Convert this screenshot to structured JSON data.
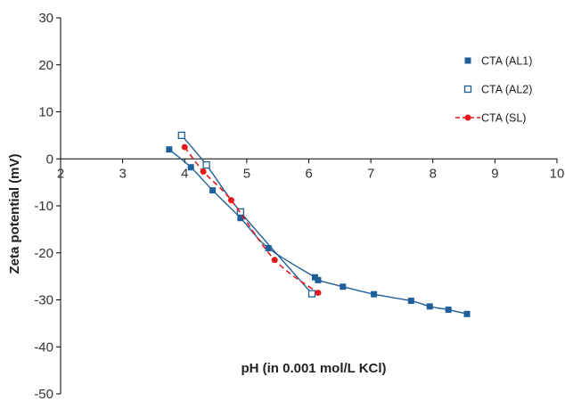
{
  "chart_data": {
    "type": "scatter",
    "xlabel": "pH (in 0.001 mol/L KCl)",
    "ylabel": "Zeta potential (mV)",
    "xlim": [
      2,
      10
    ],
    "ylim": [
      -50,
      30
    ],
    "xticks": [
      2,
      3,
      4,
      5,
      6,
      7,
      8,
      9,
      10
    ],
    "yticks": [
      30,
      20,
      10,
      0,
      -10,
      -20,
      -30,
      -40,
      -50
    ],
    "grid": false,
    "legend_position": "right",
    "series": [
      {
        "name": "CTA (AL1)",
        "marker": "filled-square",
        "color": "#1f5f99",
        "line": "solid",
        "points": [
          [
            3.75,
            2.0
          ],
          [
            4.1,
            -1.8
          ],
          [
            4.45,
            -6.7
          ],
          [
            4.9,
            -12.6
          ],
          [
            5.35,
            -19.0
          ],
          [
            6.1,
            -25.2
          ],
          [
            6.15,
            -25.8
          ],
          [
            6.55,
            -27.2
          ],
          [
            7.05,
            -28.8
          ],
          [
            7.65,
            -30.2
          ],
          [
            7.95,
            -31.4
          ],
          [
            8.25,
            -32.1
          ],
          [
            8.55,
            -33.0
          ]
        ]
      },
      {
        "name": "CTA (AL2)",
        "marker": "open-square",
        "color": "#1f5f99",
        "line": "solid",
        "points": [
          [
            3.95,
            5.0
          ],
          [
            4.35,
            -1.3
          ],
          [
            4.9,
            -11.3
          ],
          [
            6.05,
            -28.7
          ]
        ]
      },
      {
        "name": "CTA (SL)",
        "marker": "circle",
        "color": "#e41a1c",
        "line": "dashed",
        "points": [
          [
            4.0,
            2.5
          ],
          [
            4.3,
            -2.7
          ],
          [
            4.75,
            -8.8
          ],
          [
            5.45,
            -21.5
          ],
          [
            6.15,
            -28.5
          ]
        ]
      }
    ]
  }
}
